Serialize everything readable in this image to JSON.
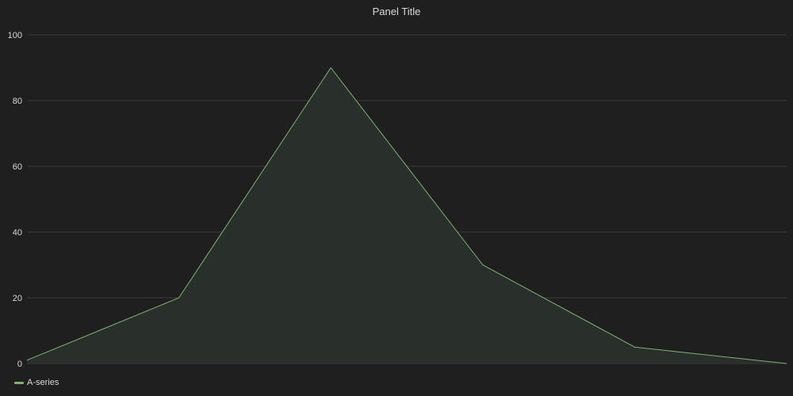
{
  "panel": {
    "title": "Panel Title"
  },
  "colors": {
    "background": "#1f1f20",
    "grid": "#3a3a3c",
    "text": "#d8d9da",
    "series": "#7eb26d",
    "fill": "#2a322c"
  },
  "chart_data": {
    "type": "area",
    "title": "Panel Title",
    "x": [
      0,
      1,
      2,
      3,
      4,
      5
    ],
    "series": [
      {
        "name": "A-series",
        "values": [
          1,
          20,
          90,
          30,
          5,
          0
        ]
      }
    ],
    "yticks": [
      "0",
      "20",
      "40",
      "60",
      "80",
      "100"
    ],
    "ylim": [
      0,
      100
    ],
    "grid": true,
    "legend": "bottom-left"
  }
}
